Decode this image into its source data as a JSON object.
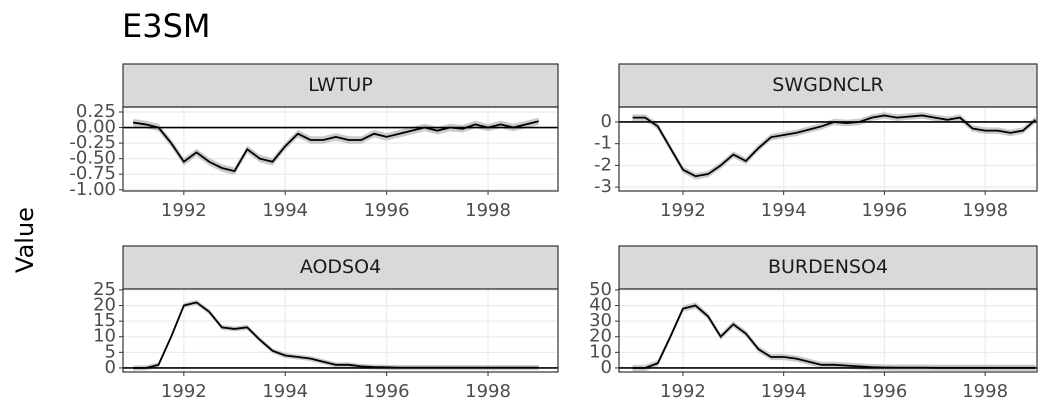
{
  "title": "E3SM",
  "y_label": "Value",
  "chart_data": [
    {
      "type": "line",
      "title": "LWTUP",
      "hline": 0,
      "color": "#000000",
      "ribbon_color": "#bdbdbd",
      "x": [
        1991,
        1991.25,
        1991.5,
        1991.75,
        1992,
        1992.25,
        1992.5,
        1992.75,
        1993,
        1993.25,
        1993.5,
        1993.75,
        1994,
        1994.25,
        1994.5,
        1994.75,
        1995,
        1995.25,
        1995.5,
        1995.75,
        1996,
        1996.25,
        1996.5,
        1996.75,
        1997,
        1997.25,
        1997.5,
        1997.75,
        1998,
        1998.25,
        1998.5,
        1998.75,
        1999
      ],
      "values": [
        0.08,
        0.05,
        0.0,
        -0.25,
        -0.55,
        -0.4,
        -0.55,
        -0.65,
        -0.7,
        -0.35,
        -0.5,
        -0.55,
        -0.3,
        -0.1,
        -0.2,
        -0.2,
        -0.15,
        -0.2,
        -0.2,
        -0.1,
        -0.15,
        -0.1,
        -0.05,
        0.0,
        -0.05,
        0.0,
        -0.02,
        0.05,
        0.0,
        0.05,
        0.0,
        0.05,
        0.1
      ],
      "errors": [
        0.06,
        0.06,
        0.06,
        0.06,
        0.06,
        0.06,
        0.06,
        0.06,
        0.06,
        0.06,
        0.06,
        0.06,
        0.06,
        0.06,
        0.06,
        0.06,
        0.06,
        0.06,
        0.06,
        0.06,
        0.06,
        0.06,
        0.06,
        0.06,
        0.06,
        0.06,
        0.06,
        0.06,
        0.06,
        0.06,
        0.06,
        0.06,
        0.06
      ],
      "xlim": [
        1990.8,
        1999.38
      ],
      "xticks": [
        1992,
        1994,
        1996,
        1998
      ],
      "ylim": [
        -1.02,
        0.33
      ],
      "yticks": [
        0.25,
        {
          "value": 0,
          "label": "0.00"
        },
        -0.25,
        {
          "value": -0.5,
          "label": "-0.50"
        },
        -0.75,
        {
          "value": -1,
          "label": "-1.00"
        }
      ],
      "grid": true
    },
    {
      "type": "line",
      "title": "SWGDNCLR",
      "hline": 0,
      "color": "#000000",
      "ribbon_color": "#bdbdbd",
      "x": [
        1991,
        1991.25,
        1991.5,
        1991.75,
        1992,
        1992.25,
        1992.5,
        1992.75,
        1993,
        1993.25,
        1993.5,
        1993.75,
        1994,
        1994.25,
        1994.5,
        1994.75,
        1995,
        1995.25,
        1995.5,
        1995.75,
        1996,
        1996.25,
        1996.5,
        1996.75,
        1997,
        1997.25,
        1997.5,
        1997.75,
        1998,
        1998.25,
        1998.5,
        1998.75,
        1999
      ],
      "values": [
        0.2,
        0.2,
        -0.2,
        -1.2,
        -2.2,
        -2.5,
        -2.4,
        -2.0,
        -1.5,
        -1.8,
        -1.2,
        -0.7,
        -0.6,
        -0.5,
        -0.35,
        -0.2,
        0.0,
        -0.05,
        0.0,
        0.2,
        0.3,
        0.2,
        0.25,
        0.3,
        0.2,
        0.1,
        0.2,
        -0.3,
        -0.4,
        -0.4,
        -0.5,
        -0.4,
        0.1
      ],
      "errors": [
        0.15,
        0.15,
        0.15,
        0.15,
        0.15,
        0.15,
        0.15,
        0.15,
        0.15,
        0.15,
        0.15,
        0.15,
        0.15,
        0.15,
        0.15,
        0.15,
        0.15,
        0.15,
        0.15,
        0.15,
        0.15,
        0.15,
        0.15,
        0.15,
        0.15,
        0.15,
        0.15,
        0.15,
        0.15,
        0.15,
        0.15,
        0.15,
        0.15
      ],
      "xlim": [
        1990.73,
        1999.03
      ],
      "xticks": [
        1992,
        1994,
        1996,
        1998
      ],
      "ylim": [
        -3.18,
        0.69
      ],
      "yticks": [
        0,
        -1,
        -2,
        -3
      ],
      "grid": true
    },
    {
      "type": "line",
      "title": "AODSO4",
      "hline": 0,
      "color": "#000000",
      "ribbon_color": "#bdbdbd",
      "x": [
        1991,
        1991.25,
        1991.5,
        1991.75,
        1992,
        1992.25,
        1992.5,
        1992.75,
        1993,
        1993.25,
        1993.5,
        1993.75,
        1994,
        1994.25,
        1994.5,
        1994.75,
        1995,
        1995.25,
        1995.5,
        1995.75,
        1996,
        1996.25,
        1996.5,
        1996.75,
        1997,
        1997.25,
        1997.5,
        1997.75,
        1998,
        1998.25,
        1998.5,
        1998.75,
        1999
      ],
      "values": [
        0,
        0,
        1,
        10,
        20,
        21,
        18,
        13,
        12.5,
        13,
        9,
        5.5,
        4,
        3.5,
        3,
        2,
        1,
        1,
        0.5,
        0.3,
        0.2,
        0.1,
        0.1,
        0.1,
        0.1,
        0.1,
        0.1,
        0.1,
        0.1,
        0.1,
        0.1,
        0.1,
        0.1
      ],
      "errors": [
        0.8,
        0.8,
        0.8,
        0.8,
        0.8,
        0.8,
        0.8,
        0.8,
        0.8,
        0.8,
        0.8,
        0.8,
        0.8,
        0.8,
        0.8,
        0.8,
        0.8,
        0.8,
        0.8,
        0.8,
        0.8,
        0.8,
        0.8,
        0.8,
        0.8,
        0.8,
        0.8,
        0.8,
        0.8,
        0.8,
        0.8,
        0.8,
        0.8
      ],
      "xlim": [
        1990.8,
        1999.38
      ],
      "xticks": [
        1992,
        1994,
        1996,
        1998
      ],
      "ylim": [
        -1.3,
        25.3
      ],
      "yticks": [
        0,
        5,
        10,
        15,
        20,
        25
      ],
      "grid": true
    },
    {
      "type": "line",
      "title": "BURDENSO4",
      "hline": 0,
      "color": "#000000",
      "ribbon_color": "#bdbdbd",
      "x": [
        1991,
        1991.25,
        1991.5,
        1991.75,
        1992,
        1992.25,
        1992.5,
        1992.75,
        1993,
        1993.25,
        1993.5,
        1993.75,
        1994,
        1994.25,
        1994.5,
        1994.75,
        1995,
        1995.25,
        1995.5,
        1995.75,
        1996,
        1996.25,
        1996.5,
        1996.75,
        1997,
        1997.25,
        1997.5,
        1997.75,
        1998,
        1998.25,
        1998.5,
        1998.75,
        1999
      ],
      "values": [
        0,
        0,
        3,
        20,
        38,
        40,
        33,
        20,
        28,
        22,
        12,
        7,
        7,
        6,
        4,
        2,
        2,
        1.5,
        1,
        0.5,
        0.3,
        0.2,
        0.2,
        0.2,
        0.1,
        0.1,
        0.1,
        0.1,
        0.1,
        0.1,
        0.1,
        0.1,
        0.1
      ],
      "errors": [
        2,
        2,
        2,
        2,
        2,
        2,
        2,
        2,
        2,
        2,
        2,
        2,
        2,
        2,
        2,
        2,
        2,
        2,
        2,
        2,
        2,
        2,
        2,
        2,
        2,
        2,
        2,
        2,
        2,
        2,
        2,
        2,
        2
      ],
      "xlim": [
        1990.73,
        1999.03
      ],
      "xticks": [
        1992,
        1994,
        1996,
        1998
      ],
      "ylim": [
        -2.6,
        50.6
      ],
      "yticks": [
        0,
        10,
        20,
        30,
        40,
        50
      ],
      "grid": true
    }
  ]
}
